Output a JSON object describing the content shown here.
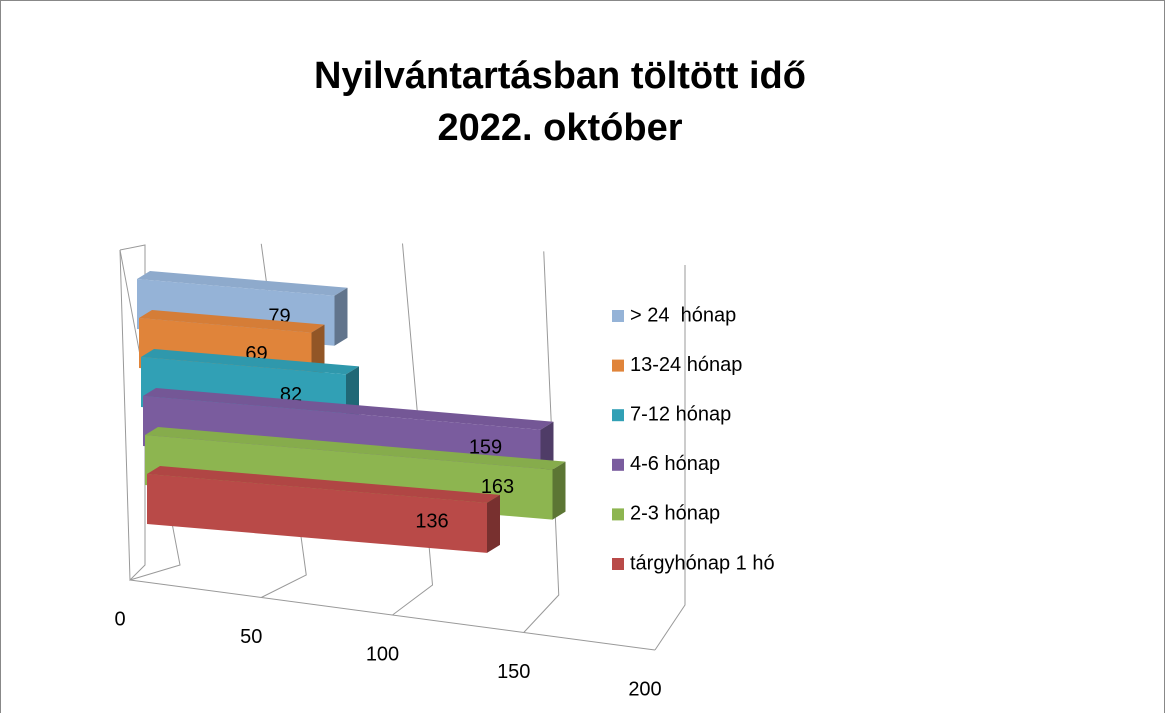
{
  "chart_data": {
    "type": "bar3d",
    "orientation": "horizontal",
    "title": [
      "Nyilvántartásban töltött idő",
      "2022. október"
    ],
    "series": [
      {
        "name": "> 24  hónap",
        "color": "#95b3d7",
        "values": [
          79
        ]
      },
      {
        "name": "13-24 hónap",
        "color": "#e0843a",
        "values": [
          69
        ]
      },
      {
        "name": "7-12 hónap",
        "color": "#31a0b5",
        "values": [
          82
        ]
      },
      {
        "name": "4-6 hónap",
        "color": "#7a5c9e",
        "values": [
          159
        ]
      },
      {
        "name": "2-3 hónap",
        "color": "#8db550",
        "values": [
          163
        ]
      },
      {
        "name": "tárgyhónap 1 hó",
        "color": "#b94a48",
        "values": [
          136
        ]
      }
    ],
    "xlim": [
      0,
      200
    ],
    "xticks": [
      0,
      50,
      100,
      150,
      200
    ],
    "grid": true,
    "legend": "right"
  }
}
